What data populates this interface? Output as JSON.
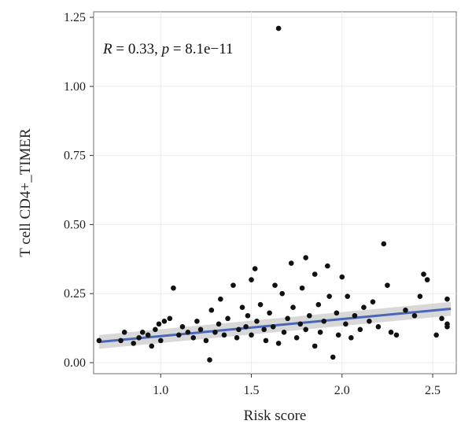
{
  "chart_data": {
    "type": "scatter",
    "xlabel": "Risk score",
    "ylabel": "T cell CD4+_TIMER",
    "xlim": [
      0.63,
      2.63
    ],
    "ylim": [
      -0.04,
      1.27
    ],
    "xticks": [
      1.0,
      1.5,
      2.0,
      2.5
    ],
    "xtick_labels": [
      "1.0",
      "1.5",
      "2.0",
      "2.5"
    ],
    "yticks": [
      0.0,
      0.25,
      0.5,
      0.75,
      1.0,
      1.25
    ],
    "ytick_labels": [
      "0.00",
      "0.25",
      "0.50",
      "0.75",
      "1.00",
      "1.25"
    ],
    "grid": true,
    "legend": "none",
    "annotation": {
      "r_label": "R",
      "r_value": " = 0.33, ",
      "p_label": "p",
      "p_value": " = 8.1e−11"
    },
    "regression": {
      "x": [
        0.66,
        2.6
      ],
      "y": [
        0.075,
        0.195
      ],
      "ci_low": [
        0.05,
        0.17
      ],
      "ci_high": [
        0.1,
        0.22
      ],
      "color": "#4a66b8",
      "ci_color": "#c8c8c8"
    },
    "point_color": "#111111",
    "points": [
      [
        0.66,
        0.08
      ],
      [
        0.78,
        0.08
      ],
      [
        0.8,
        0.11
      ],
      [
        0.85,
        0.07
      ],
      [
        0.88,
        0.09
      ],
      [
        0.9,
        0.11
      ],
      [
        0.93,
        0.1
      ],
      [
        0.95,
        0.06
      ],
      [
        0.97,
        0.12
      ],
      [
        0.99,
        0.14
      ],
      [
        1.0,
        0.08
      ],
      [
        1.02,
        0.15
      ],
      [
        1.05,
        0.16
      ],
      [
        1.07,
        0.27
      ],
      [
        1.1,
        0.1
      ],
      [
        1.12,
        0.13
      ],
      [
        1.15,
        0.11
      ],
      [
        1.18,
        0.09
      ],
      [
        1.2,
        0.15
      ],
      [
        1.22,
        0.12
      ],
      [
        1.25,
        0.08
      ],
      [
        1.27,
        0.01
      ],
      [
        1.28,
        0.19
      ],
      [
        1.3,
        0.11
      ],
      [
        1.32,
        0.14
      ],
      [
        1.33,
        0.23
      ],
      [
        1.35,
        0.1
      ],
      [
        1.37,
        0.16
      ],
      [
        1.4,
        0.28
      ],
      [
        1.42,
        0.09
      ],
      [
        1.43,
        0.12
      ],
      [
        1.45,
        0.2
      ],
      [
        1.47,
        0.13
      ],
      [
        1.48,
        0.17
      ],
      [
        1.5,
        0.3
      ],
      [
        1.5,
        0.1
      ],
      [
        1.52,
        0.34
      ],
      [
        1.53,
        0.15
      ],
      [
        1.55,
        0.21
      ],
      [
        1.57,
        0.12
      ],
      [
        1.58,
        0.08
      ],
      [
        1.6,
        0.18
      ],
      [
        1.62,
        0.13
      ],
      [
        1.63,
        0.28
      ],
      [
        1.65,
        1.21
      ],
      [
        1.65,
        0.07
      ],
      [
        1.67,
        0.25
      ],
      [
        1.68,
        0.11
      ],
      [
        1.7,
        0.16
      ],
      [
        1.72,
        0.36
      ],
      [
        1.73,
        0.2
      ],
      [
        1.75,
        0.09
      ],
      [
        1.77,
        0.14
      ],
      [
        1.78,
        0.27
      ],
      [
        1.8,
        0.38
      ],
      [
        1.8,
        0.12
      ],
      [
        1.82,
        0.17
      ],
      [
        1.85,
        0.32
      ],
      [
        1.85,
        0.06
      ],
      [
        1.87,
        0.21
      ],
      [
        1.88,
        0.11
      ],
      [
        1.9,
        0.15
      ],
      [
        1.92,
        0.35
      ],
      [
        1.93,
        0.24
      ],
      [
        1.95,
        0.02
      ],
      [
        1.97,
        0.18
      ],
      [
        1.98,
        0.1
      ],
      [
        2.0,
        0.31
      ],
      [
        2.02,
        0.14
      ],
      [
        2.03,
        0.24
      ],
      [
        2.05,
        0.09
      ],
      [
        2.07,
        0.17
      ],
      [
        2.1,
        0.12
      ],
      [
        2.12,
        0.2
      ],
      [
        2.15,
        0.15
      ],
      [
        2.17,
        0.22
      ],
      [
        2.2,
        0.13
      ],
      [
        2.23,
        0.43
      ],
      [
        2.25,
        0.28
      ],
      [
        2.27,
        0.11
      ],
      [
        2.3,
        0.1
      ],
      [
        2.35,
        0.19
      ],
      [
        2.4,
        0.17
      ],
      [
        2.43,
        0.24
      ],
      [
        2.45,
        0.32
      ],
      [
        2.47,
        0.3
      ],
      [
        2.52,
        0.1
      ],
      [
        2.55,
        0.16
      ],
      [
        2.58,
        0.23
      ],
      [
        2.58,
        0.14
      ],
      [
        2.58,
        0.13
      ]
    ]
  }
}
